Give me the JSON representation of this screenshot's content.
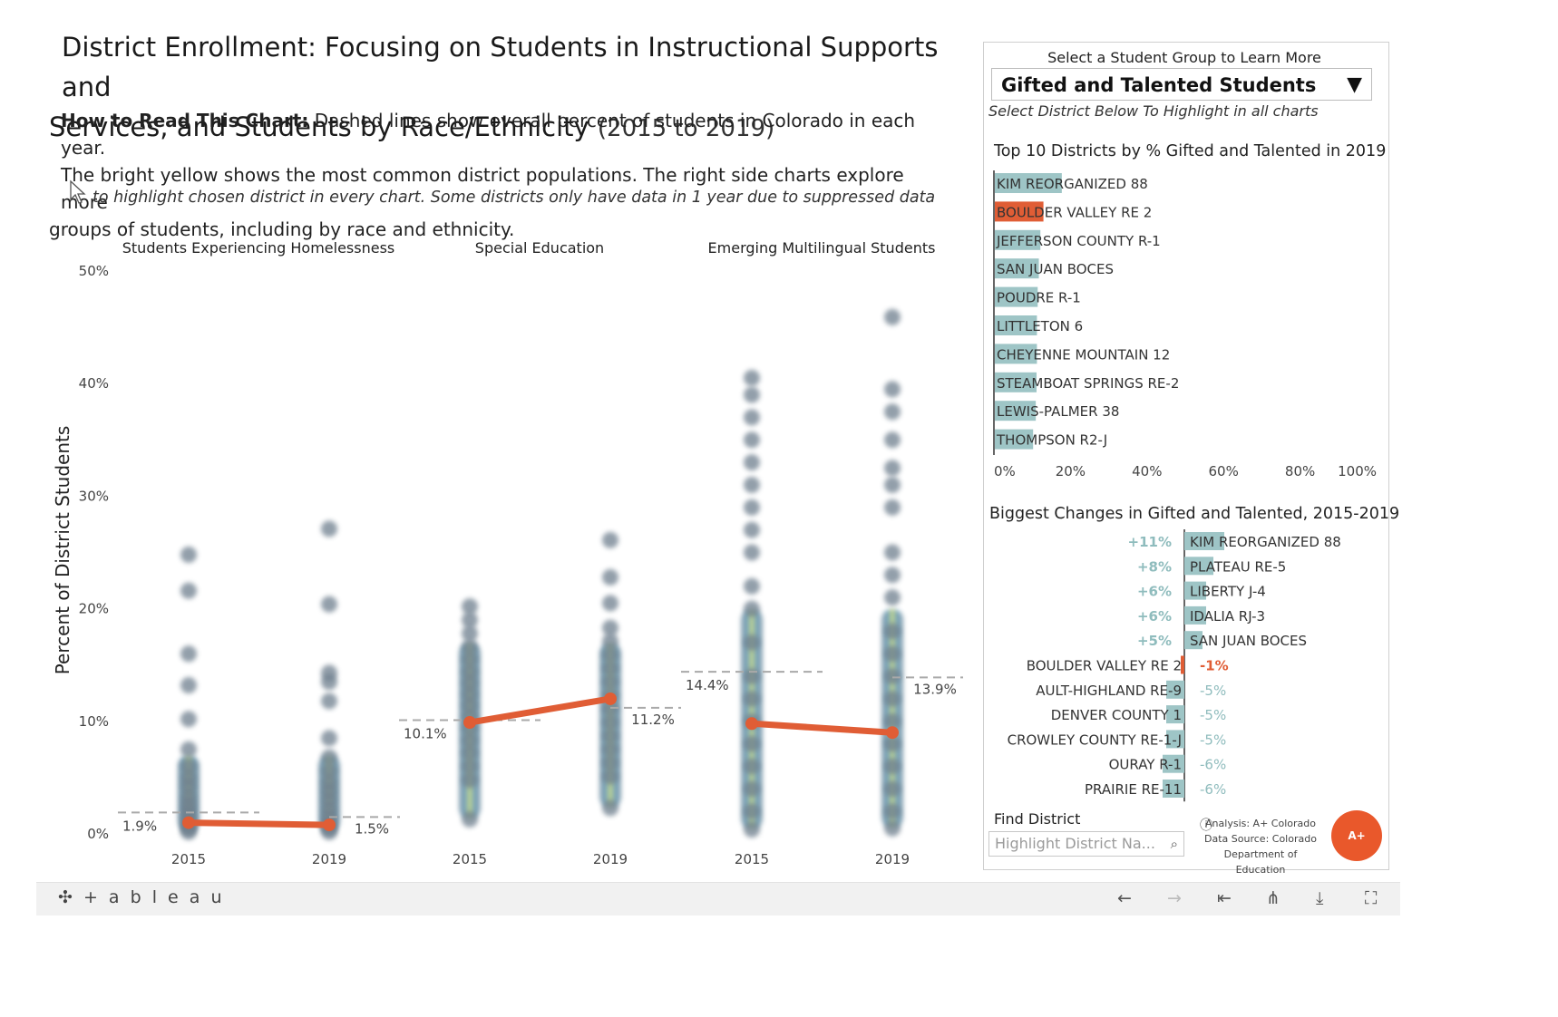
{
  "title": {
    "line1": "District Enrollment: Focusing on Students in Instructional Supports and",
    "line2": "Services, and Students by Race/Ethnicity",
    "years": "(2015 to 2019)"
  },
  "howto": {
    "bold": "How to Read This Chart:",
    "line1": " Dashed lines show overall percent of students in Colorado in each year.",
    "line2": "The bright yellow shows the most common district populations. The right side charts explore more",
    "line3": "groups of students, including by race and ethnicity."
  },
  "hint": "to highlight chosen district in every chart. Some districts only have data in 1 year due to suppressed data",
  "colors": {
    "highlight": "#e05d35",
    "bar": "#9ec5c6",
    "up_text": "#8fbcbd",
    "dots": "#6e7f8e",
    "state_line": "#a9a9a9"
  },
  "chart_data": [
    {
      "type": "scatter",
      "ylabel": "Percent of District Students",
      "ylim": [
        0,
        50
      ],
      "yticks": [
        "0%",
        "10%",
        "20%",
        "30%",
        "40%",
        "50%"
      ],
      "panels": [
        {
          "title": "Students Experiencing Homelessness",
          "x": [
            "2015",
            "2019"
          ],
          "state_avg": [
            1.9,
            1.5
          ],
          "state_labels": [
            "1.9%",
            "1.5%"
          ],
          "highlight": [
            1.0,
            0.8
          ],
          "dots": [
            [
              0.2,
              0.5,
              0.9,
              1.4,
              2.0,
              2.6,
              3.3,
              4.2,
              5.0,
              6.0,
              7.5,
              10.2,
              13.2,
              16.0,
              21.6,
              24.8
            ],
            [
              0.2,
              0.5,
              0.9,
              1.5,
              2.2,
              3.0,
              3.8,
              4.6,
              5.6,
              6.8,
              8.5,
              11.8,
              13.5,
              14.3,
              20.4,
              27.1
            ]
          ]
        },
        {
          "title": "Special Education",
          "x": [
            "2015",
            "2019"
          ],
          "state_avg": [
            10.1,
            11.2
          ],
          "state_labels": [
            "10.1%",
            "11.2%"
          ],
          "highlight": [
            9.9,
            12.0
          ],
          "dots": [
            [
              1.3,
              4.8,
              6.0,
              7.2,
              8.3,
              9.4,
              10.4,
              11.4,
              12.4,
              13.4,
              14.4,
              15.5,
              16.6,
              17.8,
              19.0,
              20.2
            ],
            [
              2.3,
              5.1,
              6.3,
              7.5,
              8.7,
              9.9,
              11.1,
              12.3,
              13.5,
              14.7,
              15.9,
              17.1,
              18.3,
              20.5,
              22.8,
              26.1
            ]
          ]
        },
        {
          "title": "Emerging Multilingual Students",
          "x": [
            "2015",
            "2019"
          ],
          "state_avg": [
            14.4,
            13.9
          ],
          "state_labels": [
            "14.4%",
            "13.9%"
          ],
          "highlight": [
            9.8,
            9.0
          ],
          "dots": [
            [
              0.4,
              2.0,
              4.0,
              6.0,
              8.0,
              10.0,
              12.0,
              14.0,
              17.0,
              20.0,
              22.0,
              25.0,
              27.0,
              29.0,
              31.0,
              33.0,
              35.0,
              37.0,
              39.0,
              40.5
            ],
            [
              0.5,
              2.0,
              4.0,
              6.0,
              8.0,
              10.0,
              12.0,
              14.0,
              16.0,
              18.0,
              21.0,
              23.0,
              25.0,
              29.0,
              31.0,
              32.5,
              35.0,
              37.5,
              39.5,
              45.9
            ]
          ]
        }
      ]
    },
    {
      "type": "bar",
      "title": "Top 10 Districts by % Gifted and Talented in 2019",
      "categories": [
        "KIM REORGANIZED 88",
        "BOULDER VALLEY RE 2",
        "JEFFERSON COUNTY R-1",
        "SAN JUAN BOCES",
        "POUDRE R-1",
        "LITTLETON 6",
        "CHEYENNE MOUNTAIN 12",
        "STEAMBOAT SPRINGS RE-2",
        "LEWIS-PALMER 38",
        "THOMPSON R2-J"
      ],
      "values": [
        17.5,
        12.7,
        11.9,
        11.5,
        11.2,
        11.0,
        11.0,
        10.9,
        10.7,
        10.0
      ],
      "highlighted": "BOULDER VALLEY RE 2",
      "xticks": [
        "0%",
        "20%",
        "40%",
        "60%",
        "80%",
        "100%"
      ],
      "xlim": [
        0,
        100
      ]
    },
    {
      "type": "bar",
      "title": "Biggest Changes in Gifted and Talented, 2015-2019",
      "categories": [
        "KIM REORGANIZED 88",
        "PLATEAU RE-5",
        "LIBERTY J-4",
        "IDALIA RJ-3",
        "SAN JUAN BOCES",
        "BOULDER VALLEY RE 2",
        "AULT-HIGHLAND RE-9",
        "DENVER COUNTY 1",
        "CROWLEY COUNTY RE-1-J",
        "OURAY R-1",
        "PRAIRIE RE-11"
      ],
      "values": [
        11,
        8,
        6,
        6,
        5,
        -1,
        -5,
        -5,
        -5,
        -6,
        -6
      ],
      "labels": [
        "+11%",
        "+8%",
        "+6%",
        "+6%",
        "+5%",
        "-1%",
        "-5%",
        "-5%",
        "-5%",
        "-6%",
        "-6%"
      ],
      "highlighted": "BOULDER VALLEY RE 2"
    }
  ],
  "selector": {
    "label": "Select a Student Group to Learn More",
    "value": "Gifted and Talented Students",
    "hint": "Select District Below To Highlight  in all charts"
  },
  "find": {
    "label": "Find District",
    "placeholder": "Highlight District Na..."
  },
  "credit": {
    "line1": "Analysis: A+ Colorado",
    "line2": "Data Source: Colorado",
    "line3": "Department of Education",
    "logo": "A+"
  },
  "footer": {
    "brand": "+ a b l e a u"
  }
}
